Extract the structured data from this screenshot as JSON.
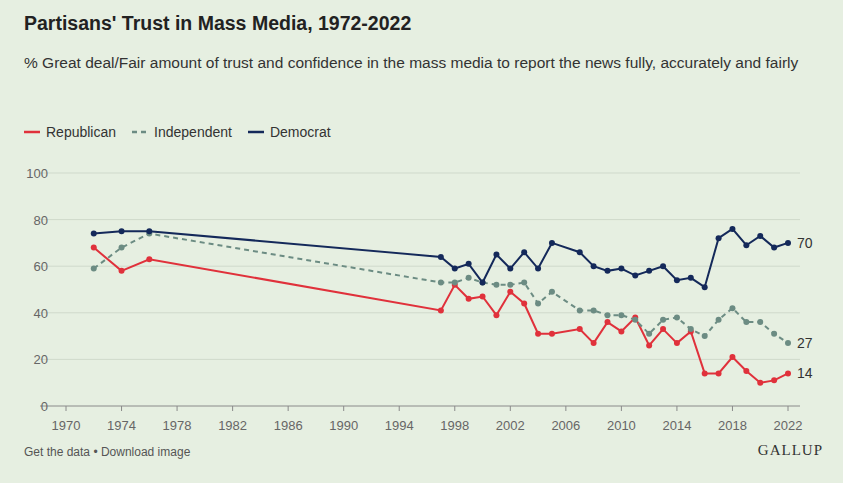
{
  "chart_data": {
    "type": "line",
    "title": "Partisans' Trust in Mass Media, 1972-2022",
    "subtitle": "% Great deal/Fair amount of trust and confidence in the mass media to report the news fully, accurately and fairly",
    "x": [
      1972,
      1974,
      1976,
      1997,
      1998,
      1999,
      2000,
      2001,
      2002,
      2003,
      2004,
      2005,
      2007,
      2008,
      2009,
      2010,
      2011,
      2012,
      2013,
      2014,
      2015,
      2016,
      2017,
      2018,
      2019,
      2020,
      2021,
      2022
    ],
    "xlim": [
      1970,
      2022
    ],
    "xticks": [
      1970,
      1974,
      1978,
      1982,
      1986,
      1990,
      1994,
      1998,
      2002,
      2006,
      2010,
      2014,
      2018,
      2022
    ],
    "ylim": [
      0,
      100
    ],
    "yticks": [
      0,
      20,
      40,
      60,
      80,
      100
    ],
    "grid": true,
    "legend": "top-left",
    "series": [
      {
        "name": "Republican",
        "color": "#e0313b",
        "marker": "circle",
        "line_style": "solid",
        "values": [
          68,
          58,
          63,
          41,
          52,
          46,
          47,
          39,
          49,
          44,
          31,
          31,
          33,
          27,
          36,
          32,
          38,
          26,
          33,
          27,
          32,
          14,
          14,
          21,
          15,
          10,
          11,
          14
        ]
      },
      {
        "name": "Independent",
        "color": "#6c8c83",
        "marker": "circle",
        "line_style": "dashed",
        "values": [
          59,
          68,
          74,
          53,
          53,
          55,
          53,
          52,
          52,
          53,
          44,
          49,
          41,
          41,
          39,
          39,
          37,
          31,
          37,
          38,
          33,
          30,
          37,
          42,
          36,
          36,
          31,
          27
        ]
      },
      {
        "name": "Democrat",
        "color": "#14295a",
        "marker": "circle",
        "line_style": "solid",
        "values": [
          74,
          75,
          75,
          64,
          59,
          61,
          53,
          65,
          59,
          66,
          59,
          70,
          66,
          60,
          58,
          59,
          56,
          58,
          60,
          54,
          55,
          51,
          72,
          76,
          69,
          73,
          68,
          70
        ]
      }
    ],
    "footer": "Get the data • Download image",
    "source": "GALLUP"
  }
}
